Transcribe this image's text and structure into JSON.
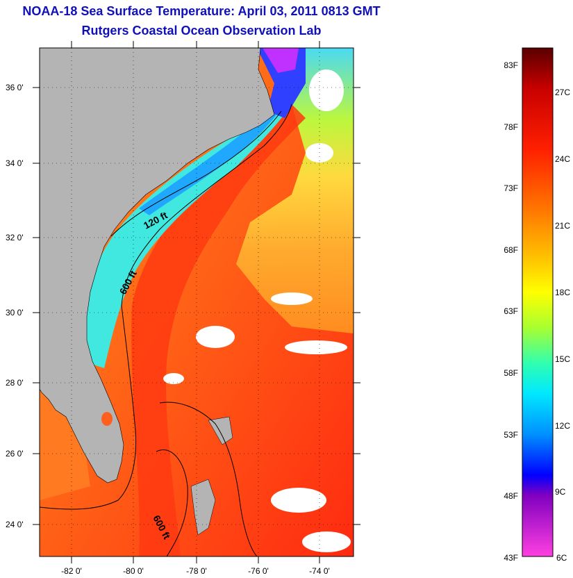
{
  "title": {
    "line1": "NOAA-18 Sea Surface Temperature:  April 03, 2011 0813 GMT",
    "line2": "Rutgers Coastal Ocean Observation Lab"
  },
  "map": {
    "lat_labels": [
      "36 0'",
      "34 0'",
      "32 0'",
      "30 0'",
      "28 0'",
      "26 0'",
      "24 0'"
    ],
    "lon_labels": [
      "-82 0'",
      "-80 0'",
      "-78 0'",
      "-76 0'",
      "-74 0'"
    ],
    "contour_labels": [
      "120 ft",
      "600 ft",
      "600 ft"
    ],
    "land_color": "#b4b4b4"
  },
  "colorbar": {
    "fahrenheit_labels": [
      "83F",
      "78F",
      "73F",
      "68F",
      "63F",
      "58F",
      "53F",
      "48F",
      "43F"
    ],
    "celsius_labels": [
      "27C",
      "24C",
      "21C",
      "18C",
      "15C",
      "12C",
      "9C",
      "6C"
    ],
    "range_f": [
      43,
      84
    ],
    "colors_top_to_bottom": [
      "#5a0000",
      "#c80000",
      "#ff2000",
      "#ff7800",
      "#ffc800",
      "#ffff00",
      "#a8ff30",
      "#30ffb0",
      "#00e8ff",
      "#0090ff",
      "#0000ff",
      "#8000c0",
      "#ff40e0"
    ]
  }
}
